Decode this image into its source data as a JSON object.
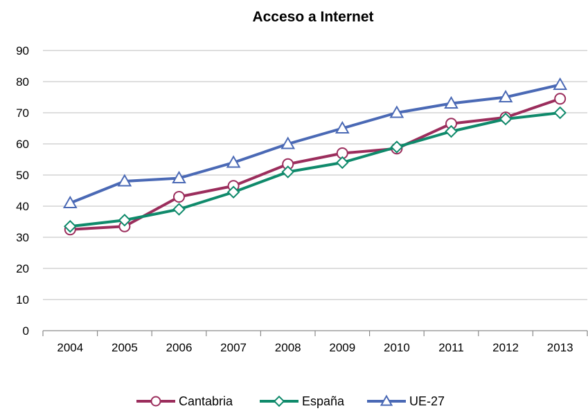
{
  "chart_data": {
    "type": "line",
    "title": "Acceso a Internet",
    "xlabel": "",
    "ylabel": "",
    "categories": [
      "2004",
      "2005",
      "2006",
      "2007",
      "2008",
      "2009",
      "2010",
      "2011",
      "2012",
      "2013"
    ],
    "yticks": [
      "0",
      "10",
      "20",
      "30",
      "40",
      "50",
      "60",
      "70",
      "80",
      "90"
    ],
    "ylim": [
      0,
      90
    ],
    "grid": true,
    "legend_position": "bottom",
    "series": [
      {
        "name": "Cantabria",
        "color": "#9b2d5c",
        "marker": "circle",
        "values": [
          32.5,
          33.5,
          43,
          46.5,
          53.5,
          57,
          58.5,
          66.5,
          68.5,
          74.5
        ]
      },
      {
        "name": "España",
        "color": "#0f8a6b",
        "marker": "diamond",
        "values": [
          33.5,
          35.5,
          39,
          44.5,
          51,
          54,
          59,
          64,
          68,
          70
        ]
      },
      {
        "name": "UE-27",
        "color": "#4a69b5",
        "marker": "triangle",
        "values": [
          41,
          48,
          49,
          54,
          60,
          65,
          70,
          73,
          75,
          79
        ]
      }
    ]
  }
}
